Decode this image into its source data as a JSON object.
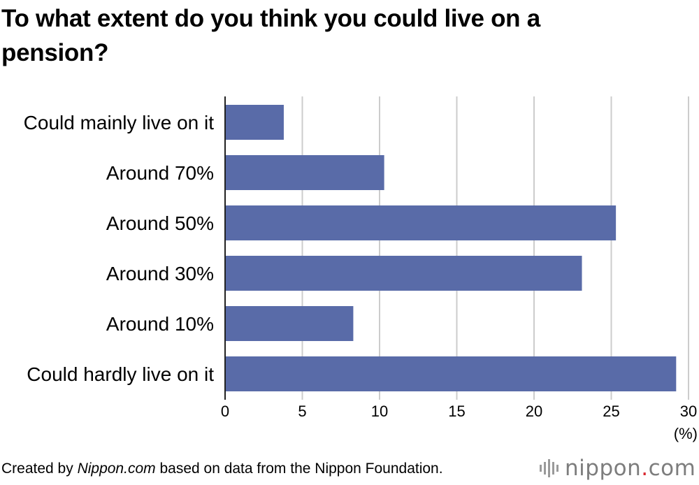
{
  "chart_data": {
    "type": "bar",
    "orientation": "horizontal",
    "title": "To what extent do you think you could live on a pension?",
    "categories": [
      "Could mainly live on it",
      "Around 70%",
      "Around 50%",
      "Around 30%",
      "Around 10%",
      "Could hardly live on it"
    ],
    "values": [
      3.8,
      10.3,
      25.3,
      23.1,
      8.3,
      29.2
    ],
    "xlim": [
      0,
      30
    ],
    "xticks": [
      0,
      5,
      10,
      15,
      20,
      25,
      30
    ],
    "xlabel": "(%)",
    "ylabel": "",
    "grid": true,
    "bar_color": "#596ba8"
  },
  "footer": {
    "prefix": "Created by ",
    "source_name": "Nippon.com",
    "suffix": " based on data from the Nippon Foundation."
  },
  "logo": {
    "name": "nippon",
    "dot": ".",
    "tld": "com"
  },
  "colors": {
    "bar": "#596ba8",
    "grid": "#cccccc",
    "axis": "#222222",
    "logo_text": "#7d7d7d",
    "logo_dot": "#d8262e"
  }
}
